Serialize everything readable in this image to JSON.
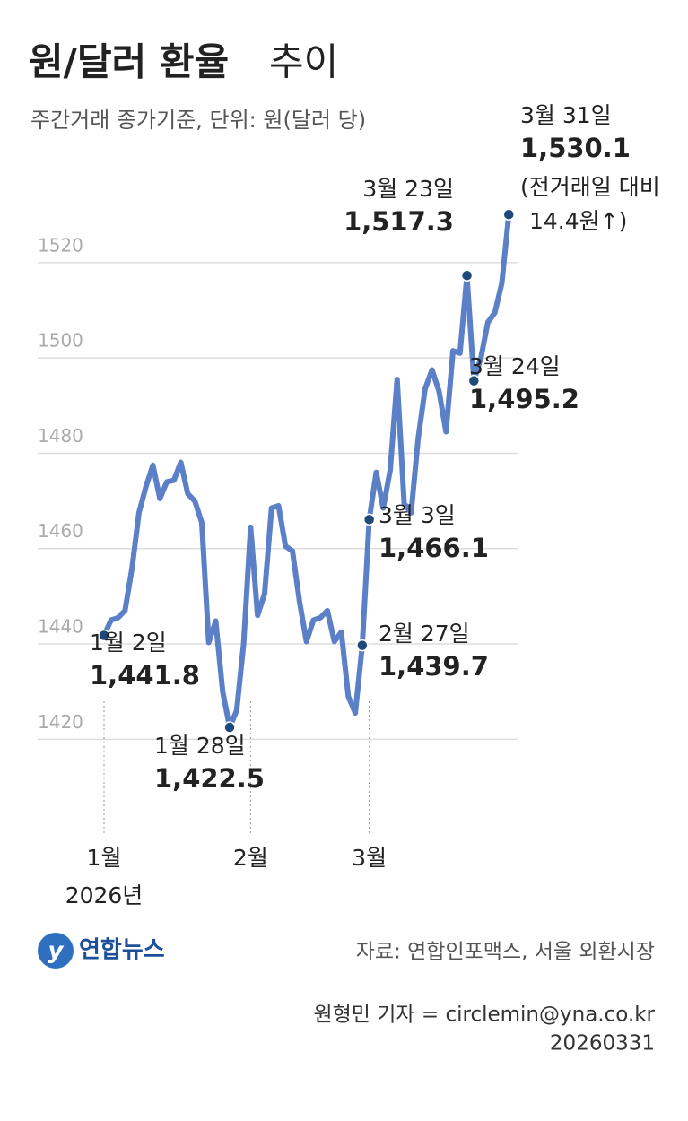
{
  "chart_data": {
    "type": "line",
    "title": "원/달러 환율",
    "title_suffix": "추이",
    "subtitle": "주간거래 종가기준, 단위: 원(달러 당)",
    "ylim": [
      1402,
      1545
    ],
    "yticks": [
      1420,
      1440,
      1460,
      1480,
      1500,
      1520
    ],
    "grid": true,
    "xticks": [
      {
        "value": 0,
        "label": "1월"
      },
      {
        "value": 21,
        "label": "2월"
      },
      {
        "value": 38,
        "label": "3월"
      }
    ],
    "x_sublabel": "2026년",
    "series": [
      {
        "color": "#5b80c8",
        "values": [
          1441.8,
          1445,
          1445.5,
          1447,
          1455.8,
          1467.5,
          1473,
          1477.5,
          1470.5,
          1474,
          1474.3,
          1478.1,
          1471.5,
          1470,
          1465.5,
          1440.3,
          1444.8,
          1430,
          1422.5,
          1426,
          1440,
          1464.5,
          1446,
          1450.5,
          1468.5,
          1469,
          1460.5,
          1459.5,
          1449,
          1440.5,
          1445,
          1445.5,
          1447,
          1440.5,
          1442.5,
          1429,
          1425.5,
          1439.7,
          1466.1,
          1476,
          1468.5,
          1476.5,
          1495.5,
          1469.5,
          1467.5,
          1483,
          1493.5,
          1497.5,
          1493,
          1484.5,
          1501.5,
          1501,
          1517.3,
          1495.2,
          1500,
          1507.5,
          1509.5,
          1515.7,
          1530.1
        ],
        "value_labels": [
          "1,441.8",
          null,
          null,
          null,
          null,
          null,
          null,
          null,
          null,
          null,
          null,
          null,
          null,
          null,
          null,
          null,
          null,
          null,
          "1,422.5",
          null,
          null,
          null,
          null,
          null,
          null,
          null,
          null,
          null,
          null,
          null,
          null,
          null,
          null,
          null,
          null,
          null,
          null,
          "1,439.7",
          "1,466.1",
          null,
          null,
          null,
          null,
          null,
          null,
          null,
          null,
          null,
          null,
          null,
          null,
          null,
          "1,517.3",
          "1,495.2",
          null,
          null,
          null,
          null,
          "1,530.1"
        ],
        "point_labels": [
          "1월 2일",
          null,
          null,
          null,
          null,
          null,
          null,
          null,
          null,
          null,
          null,
          null,
          null,
          null,
          null,
          null,
          null,
          null,
          "1월 28일",
          null,
          null,
          null,
          null,
          null,
          null,
          null,
          null,
          null,
          null,
          null,
          null,
          null,
          null,
          null,
          null,
          null,
          null,
          "2월 27일",
          "3월 3일",
          null,
          null,
          null,
          null,
          null,
          null,
          null,
          null,
          null,
          null,
          null,
          null,
          null,
          "3월 23일",
          "3월 24일",
          null,
          null,
          null,
          null,
          "3월 31일"
        ]
      }
    ],
    "note": [
      "(전거래일 대비",
      "14.4원↑)"
    ],
    "logo": "연합뉴스",
    "source": "자료: 연합인포맥스, 서울 외환시장",
    "credit": "원형민 기자 = circlemin@yna.co.kr",
    "date": "20260331"
  }
}
